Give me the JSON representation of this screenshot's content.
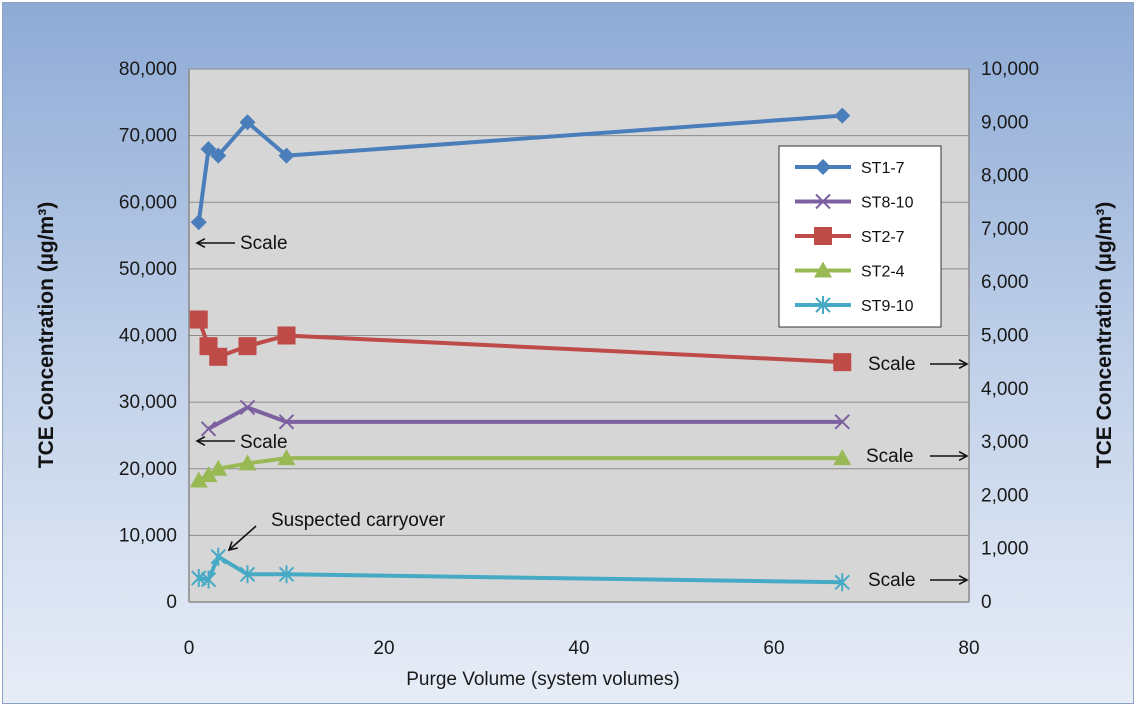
{
  "chart_data": {
    "type": "line",
    "xlabel": "Purge Volume (system volumes)",
    "ylabel": "TCE Concentration (µg/m³)",
    "y2label": "TCE Concentration (µg/m³)",
    "xlim": [
      0,
      80
    ],
    "ylim": [
      0,
      80000
    ],
    "y2lim": [
      0,
      10000
    ],
    "x_ticks": [
      "0",
      "20",
      "40",
      "60",
      "80"
    ],
    "y_ticks": [
      "0",
      "10,000",
      "20,000",
      "30,000",
      "40,000",
      "50,000",
      "60,000",
      "70,000",
      "80,000"
    ],
    "y2_ticks": [
      "0",
      "1,000",
      "2,000",
      "3,000",
      "4,000",
      "5,000",
      "6,000",
      "7,000",
      "8,000",
      "9,000",
      "10,000"
    ],
    "grid": true,
    "legend_position": "right",
    "series": [
      {
        "name": "ST1-7",
        "axis": "left",
        "color": "#4a7ebb",
        "marker": "diamond",
        "points": [
          [
            1,
            57000
          ],
          [
            2,
            68000
          ],
          [
            3,
            67000
          ],
          [
            6,
            72000
          ],
          [
            10,
            67000
          ],
          [
            67,
            73000
          ]
        ]
      },
      {
        "name": "ST8-10",
        "axis": "right",
        "color": "#7d60a0",
        "marker": "x",
        "points": [
          [
            2,
            3250
          ],
          [
            6,
            3650
          ],
          [
            10,
            3380
          ],
          [
            67,
            3380
          ]
        ]
      },
      {
        "name": "ST2-7",
        "axis": "right",
        "color": "#be4b48",
        "marker": "square",
        "points": [
          [
            1,
            5300
          ],
          [
            2,
            4800
          ],
          [
            3,
            4600
          ],
          [
            6,
            4800
          ],
          [
            10,
            5000
          ],
          [
            67,
            4500
          ]
        ]
      },
      {
        "name": "ST2-4",
        "axis": "right",
        "color": "#98b954",
        "marker": "triangle",
        "points": [
          [
            1,
            2280
          ],
          [
            2,
            2380
          ],
          [
            3,
            2500
          ],
          [
            6,
            2600
          ],
          [
            10,
            2700
          ],
          [
            67,
            2700
          ]
        ]
      },
      {
        "name": "ST9-10",
        "axis": "right",
        "color": "#46aac5",
        "marker": "star",
        "points": [
          [
            1,
            450
          ],
          [
            2,
            420
          ],
          [
            3,
            850
          ],
          [
            6,
            520
          ],
          [
            10,
            520
          ],
          [
            67,
            370
          ]
        ]
      }
    ],
    "annotations": [
      {
        "id": "scale-st1-7",
        "text": "Scale"
      },
      {
        "id": "scale-st8-10",
        "text": "Scale"
      },
      {
        "id": "scale-st2-7",
        "text": "Scale"
      },
      {
        "id": "scale-st2-4",
        "text": "Scale"
      },
      {
        "id": "scale-st9-10",
        "text": "Scale"
      },
      {
        "id": "carryover",
        "text": "Suspected carryover"
      }
    ]
  }
}
